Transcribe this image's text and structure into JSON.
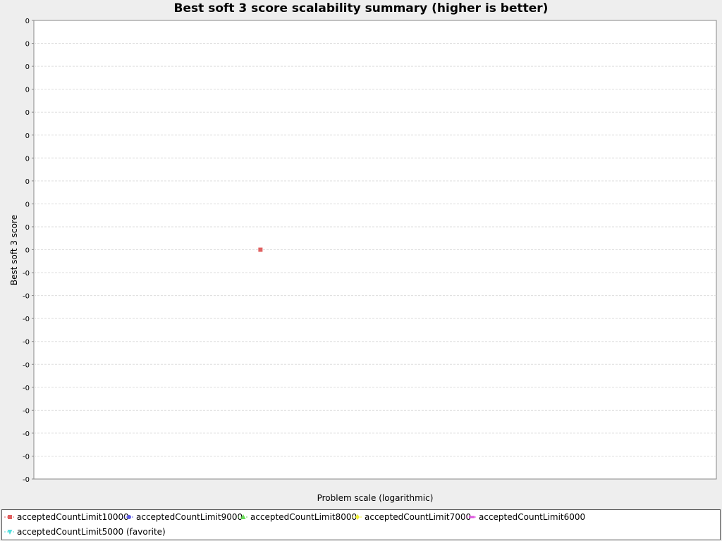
{
  "chart_data": {
    "type": "line",
    "title": "Best soft 3 score scalability summary (higher is better)",
    "xlabel": "Problem scale (logarithmic)",
    "ylabel": "Best soft 3 score",
    "y_tick_labels": [
      "0",
      "0",
      "0",
      "0",
      "0",
      "0",
      "0",
      "0",
      "0",
      "0",
      "0",
      "-0",
      "-0",
      "-0",
      "-0",
      "-0",
      "-0",
      "-0",
      "-0",
      "-0",
      "-0"
    ],
    "grid": true,
    "log_x": true,
    "legend_position": "bottom",
    "series": [
      {
        "name": "acceptedCountLimit10000",
        "color": "#e06060",
        "marker": "square",
        "points": [
          {
            "x": 1,
            "y": 0
          }
        ]
      },
      {
        "name": "acceptedCountLimit9000",
        "color": "#5a5ae6",
        "marker": "circle",
        "points": []
      },
      {
        "name": "acceptedCountLimit8000",
        "color": "#66dd55",
        "marker": "triangle-up",
        "points": []
      },
      {
        "name": "acceptedCountLimit7000",
        "color": "#eeee33",
        "marker": "diamond",
        "points": []
      },
      {
        "name": "acceptedCountLimit6000",
        "color": "#dd55dd",
        "marker": "rect-h",
        "points": []
      },
      {
        "name": "acceptedCountLimit5000 (favorite)",
        "color": "#55dddd",
        "marker": "triangle-down",
        "points": []
      }
    ]
  }
}
